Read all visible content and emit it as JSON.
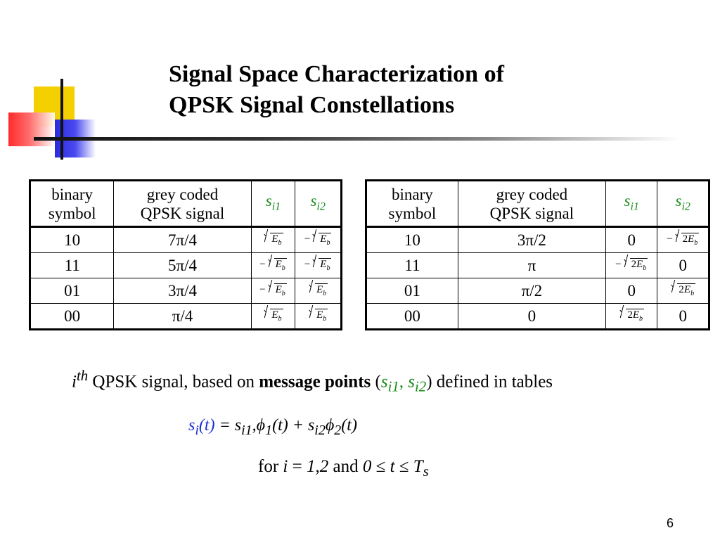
{
  "title": {
    "line1": "Signal Space Characterization of",
    "line2": "QPSK Signal Constellations"
  },
  "table_left": {
    "headers": {
      "col1_line1": "binary",
      "col1_line2": "symbol",
      "col2_line1": "grey coded",
      "col2_line2": "QPSK signal",
      "col3_base": "s",
      "col3_sub": "i1",
      "col4_base": "s",
      "col4_sub": "i2"
    },
    "rows": [
      {
        "symbol": "10",
        "signal": "7π/4",
        "si1_sign": "",
        "si1_coef": "",
        "si2_sign": "−",
        "si2_coef": ""
      },
      {
        "symbol": "11",
        "signal": "5π/4",
        "si1_sign": "−",
        "si1_coef": "",
        "si2_sign": "−",
        "si2_coef": ""
      },
      {
        "symbol": "01",
        "signal": "3π/4",
        "si1_sign": "−",
        "si1_coef": "",
        "si2_sign": "",
        "si2_coef": ""
      },
      {
        "symbol": "00",
        "signal": "π/4",
        "si1_sign": "",
        "si1_coef": "",
        "si2_sign": "",
        "si2_coef": ""
      }
    ]
  },
  "table_right": {
    "headers": {
      "col1_line1": "binary",
      "col1_line2": "symbol",
      "col2_line1": "grey coded",
      "col2_line2": "QPSK signal",
      "col3_base": "s",
      "col3_sub": "i1",
      "col4_base": "s",
      "col4_sub": "i2"
    },
    "rows": [
      {
        "symbol": "10",
        "signal": "3π/2",
        "si1": "0",
        "si2_sign": "−",
        "si2_coef": "2"
      },
      {
        "symbol": "11",
        "signal": "π",
        "si1_sign": "−",
        "si1_coef": "2",
        "si2": "0"
      },
      {
        "symbol": "01",
        "signal": "π/2",
        "si1": "0",
        "si2_sign": "",
        "si2_coef": "2"
      },
      {
        "symbol": "00",
        "signal": "0",
        "si1_sign": "",
        "si1_coef": "2",
        "si2": "0"
      }
    ]
  },
  "math": {
    "E": "E",
    "b": "b"
  },
  "caption": {
    "i": "i",
    "th": "th",
    "text1": " QPSK signal, based on ",
    "bold": "message points",
    "open": " (",
    "s1": "s",
    "s1_sub": "i1",
    "comma": ", ",
    "s2": "s",
    "s2_sub": "i2",
    "close": ") defined in tables"
  },
  "equation": {
    "lhs_s": "s",
    "lhs_sub": "i",
    "lhs_t": "(t)",
    "eq": " =  ",
    "s1": "s",
    "s1_sub": "i1",
    "comma": ",",
    "phi1": "ϕ",
    "phi1_sub": "1",
    "t1": "(t) + ",
    "s2": "s",
    "s2_sub": "i2",
    "phi2": "ϕ",
    "phi2_sub": "2",
    "t2": "(t)"
  },
  "condition": {
    "for": "for ",
    "i": "i",
    "eq": " = ",
    "range": "1,2",
    "and": " and ",
    "zero": "0",
    "le1": " ≤  ",
    "t": "t",
    "le2": " ≤ ",
    "T": "T",
    "T_sub": "s"
  },
  "page_number": "6"
}
